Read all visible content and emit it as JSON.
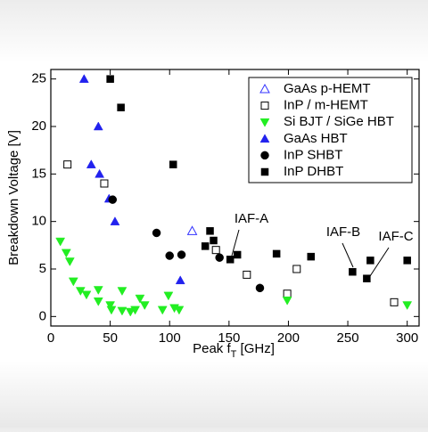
{
  "chart_data": {
    "type": "scatter",
    "x_label_parts": [
      "Peak f",
      "T",
      " [GHz]"
    ],
    "y_label": "Breakdown Voltage [V]",
    "xlim": [
      0,
      310
    ],
    "ylim": [
      -1,
      26
    ],
    "xticks": [
      0,
      50,
      100,
      150,
      200,
      250,
      300
    ],
    "yticks": [
      0,
      5,
      10,
      15,
      20,
      25
    ],
    "legend": "top-right",
    "series": [
      {
        "name": "GaAs p-HEMT",
        "color": "#3333ff",
        "marker": "triangle-up-open",
        "x": [
          119
        ],
        "values": [
          9
        ]
      },
      {
        "name": "InP / m-HEMT",
        "color": "#000000",
        "marker": "square-open",
        "x": [
          14,
          45,
          139,
          165,
          199,
          207,
          289
        ],
        "values": [
          16,
          14,
          7,
          4.4,
          2.4,
          5,
          1.5
        ]
      },
      {
        "name": "Si BJT / SiGe HBT",
        "color": "#22ee22",
        "marker": "triangle-down",
        "x": [
          8,
          13,
          16,
          19,
          25,
          30,
          40,
          40,
          50,
          51,
          60,
          60,
          67,
          71,
          75,
          79,
          94,
          99,
          104,
          108,
          199,
          300
        ],
        "values": [
          7.9,
          6.7,
          5.8,
          3.7,
          2.7,
          2.3,
          2.8,
          1.6,
          1.2,
          0.7,
          2.7,
          0.6,
          0.5,
          0.7,
          1.9,
          1.2,
          0.7,
          2.2,
          0.9,
          0.7,
          1.7,
          1.2
        ]
      },
      {
        "name": "GaAs HBT",
        "color": "#2222ee",
        "marker": "triangle-up",
        "x": [
          28,
          40,
          34,
          41,
          49,
          54,
          109
        ],
        "values": [
          25,
          20,
          16,
          15,
          12.4,
          10,
          3.8
        ]
      },
      {
        "name": "InP SHBT",
        "color": "#000000",
        "marker": "circle",
        "x": [
          52,
          89,
          100,
          110,
          142,
          176
        ],
        "values": [
          12.3,
          8.8,
          6.4,
          6.5,
          6.2,
          3.0
        ]
      },
      {
        "name": "InP DHBT",
        "color": "#000000",
        "marker": "square",
        "x": [
          50,
          59,
          103,
          134,
          137,
          130,
          151,
          157,
          190,
          219,
          254,
          266,
          269,
          300
        ],
        "values": [
          25,
          22,
          16,
          9,
          8,
          7.4,
          6,
          6.5,
          6.6,
          6.3,
          4.7,
          4,
          5.9,
          5.9
        ]
      }
    ],
    "annotations": [
      "IAF-A",
      "IAF-B",
      "IAF-C"
    ]
  }
}
